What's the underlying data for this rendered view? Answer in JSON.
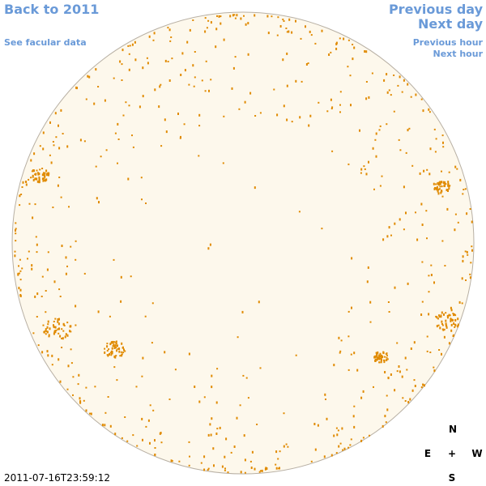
{
  "links": {
    "back": "Back to 2011",
    "facular": "See facular data",
    "previous_day": "Previous day",
    "next_day": "Next day",
    "previous_hour": "Previous hour",
    "next_hour": "Next hour"
  },
  "timestamp": "2011-07-16T23:59:12",
  "compass": {
    "north": "N",
    "east": "E",
    "center": "+",
    "west": "W",
    "south": "S"
  }
}
